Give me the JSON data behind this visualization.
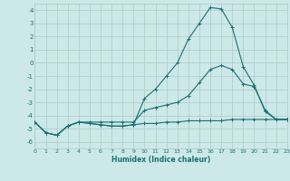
{
  "xlabel": "Humidex (Indice chaleur)",
  "x": [
    0,
    1,
    2,
    3,
    4,
    5,
    6,
    7,
    8,
    9,
    10,
    11,
    12,
    13,
    14,
    15,
    16,
    17,
    18,
    19,
    20,
    21,
    22,
    23
  ],
  "line1": [
    -4.5,
    -5.3,
    -5.5,
    -4.8,
    -4.5,
    -4.6,
    -4.7,
    -4.8,
    -4.8,
    -4.7,
    -4.6,
    -4.6,
    -4.5,
    -4.5,
    -4.4,
    -4.4,
    -4.4,
    -4.4,
    -4.3,
    -4.3,
    -4.3,
    -4.3,
    -4.3,
    -4.3
  ],
  "line2": [
    -4.5,
    -5.3,
    -5.5,
    -4.8,
    -4.5,
    -4.6,
    -4.7,
    -4.8,
    -4.8,
    -4.7,
    -2.7,
    -2.0,
    -1.0,
    0.0,
    1.8,
    3.0,
    4.2,
    4.1,
    2.7,
    -0.3,
    -1.7,
    -3.7,
    -4.3,
    -4.3
  ],
  "line3": [
    -4.5,
    -5.3,
    -5.5,
    -4.8,
    -4.5,
    -4.5,
    -4.5,
    -4.5,
    -4.5,
    -4.5,
    -3.6,
    -3.4,
    -3.2,
    -3.0,
    -2.5,
    -1.5,
    -0.5,
    -0.2,
    -0.5,
    -1.6,
    -1.8,
    -3.6,
    -4.3,
    -4.3
  ],
  "line_color": "#1a7070",
  "bg_color": "#cce8e8",
  "grid_color": "#b0c8c8",
  "ylim": [
    -6.5,
    4.5
  ],
  "xlim": [
    0,
    23
  ],
  "yticks": [
    -6,
    -5,
    -4,
    -3,
    -2,
    -1,
    0,
    1,
    2,
    3,
    4
  ],
  "xticks": [
    0,
    1,
    2,
    3,
    4,
    5,
    6,
    7,
    8,
    9,
    10,
    11,
    12,
    13,
    14,
    15,
    16,
    17,
    18,
    19,
    20,
    21,
    22,
    23
  ],
  "xtick_labels": [
    "0",
    "1",
    "2",
    "3",
    "4",
    "5",
    "6",
    "7",
    "8",
    "9",
    "10",
    "11",
    "12",
    "13",
    "14",
    "15",
    "16",
    "17",
    "18",
    "19",
    "20",
    "21",
    "22",
    "23"
  ]
}
